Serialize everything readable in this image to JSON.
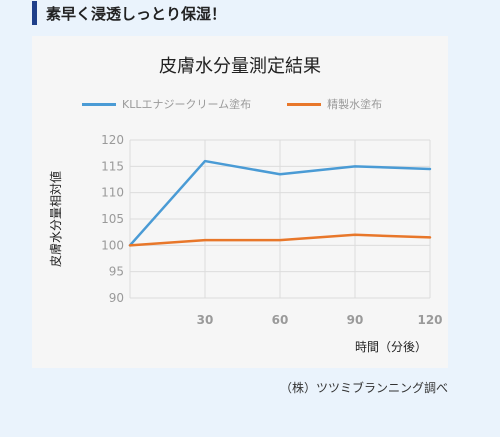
{
  "heading": "素早く浸透しっとり保湿！",
  "note": "（株）ツツミブランニング調べ",
  "colors": {
    "kll": "#4a9bd5",
    "seisei": "#e8772a",
    "heading_bar": "#1f3f8a"
  },
  "chart_data": {
    "type": "line",
    "title": "皮膚水分量測定結果",
    "xlabel": "時間（分後）",
    "ylabel": "皮膚水分量相対値",
    "x": [
      0,
      30,
      60,
      90,
      120
    ],
    "x_ticks": [
      "30",
      "60",
      "90",
      "120"
    ],
    "y_ticks": [
      "90",
      "95",
      "100",
      "105",
      "110",
      "115",
      "120"
    ],
    "ylim": [
      90,
      120
    ],
    "xlim": [
      0,
      120
    ],
    "grid": true,
    "legend_position": "top",
    "series": [
      {
        "name": "KLLエナジークリーム塗布",
        "values": [
          100,
          116,
          113.5,
          115,
          114.5
        ]
      },
      {
        "name": "精製水塗布",
        "values": [
          100,
          101,
          101,
          102,
          101.5
        ]
      }
    ]
  }
}
